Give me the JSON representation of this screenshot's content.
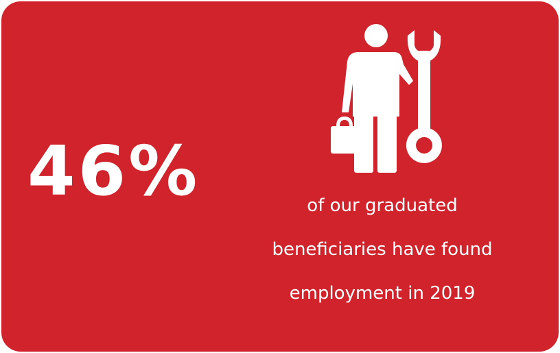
{
  "colors": {
    "background": "#d0232b",
    "foreground": "#ffffff"
  },
  "stat": {
    "value": "46%"
  },
  "icon": {
    "name": "worker-with-wrench-icon"
  },
  "caption": {
    "lines": [
      "of our graduated",
      "beneficiaries have found",
      "employment in 2019"
    ]
  }
}
